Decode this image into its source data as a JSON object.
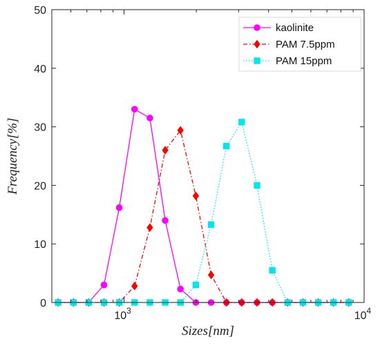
{
  "chart_data": {
    "type": "line",
    "xlabel": "Sizes[nm]",
    "ylabel": "Frequency[%]",
    "x_scale": "log",
    "xlim": [
      500,
      10000
    ],
    "ylim": [
      0,
      50
    ],
    "y_ticks": [
      0,
      10,
      20,
      30,
      40,
      50
    ],
    "x_ticks": [
      {
        "value": 1000,
        "base": "10",
        "exp": "3"
      },
      {
        "value": 10000,
        "base": "10",
        "exp": "4"
      }
    ],
    "grid": false,
    "legend_position": "top-right",
    "x": [
      531,
      615,
      712,
      825,
      955,
      1106,
      1281,
      1484,
      1718,
      1990,
      2305,
      2669,
      3091,
      3580,
      4145,
      4801,
      5560,
      6439,
      7456,
      8635
    ],
    "series": [
      {
        "name": "kaolinite",
        "color": "#ff00ff",
        "dash": "solid",
        "marker": "circle",
        "values": [
          0,
          0,
          0,
          3,
          16.2,
          33,
          31.5,
          14,
          2.3,
          0,
          0,
          0,
          0,
          0,
          0,
          0,
          0,
          0,
          0,
          0
        ]
      },
      {
        "name": "PAM 7.5ppm",
        "color": "#ff0000",
        "dash": "dashdot",
        "marker": "diamond",
        "values": [
          0,
          0,
          0,
          0,
          0,
          2.8,
          12.8,
          26,
          29.4,
          18.2,
          4.7,
          0,
          0,
          0,
          0,
          0,
          0,
          0,
          0,
          0
        ]
      },
      {
        "name": "PAM 15ppm",
        "color": "#00e5ee",
        "dash": "dotted",
        "marker": "square",
        "values": [
          0,
          0,
          0,
          0,
          0,
          0,
          0,
          0,
          0,
          3,
          13.3,
          26.7,
          30.8,
          20,
          5.5,
          0,
          0,
          0,
          0,
          0
        ]
      }
    ]
  }
}
